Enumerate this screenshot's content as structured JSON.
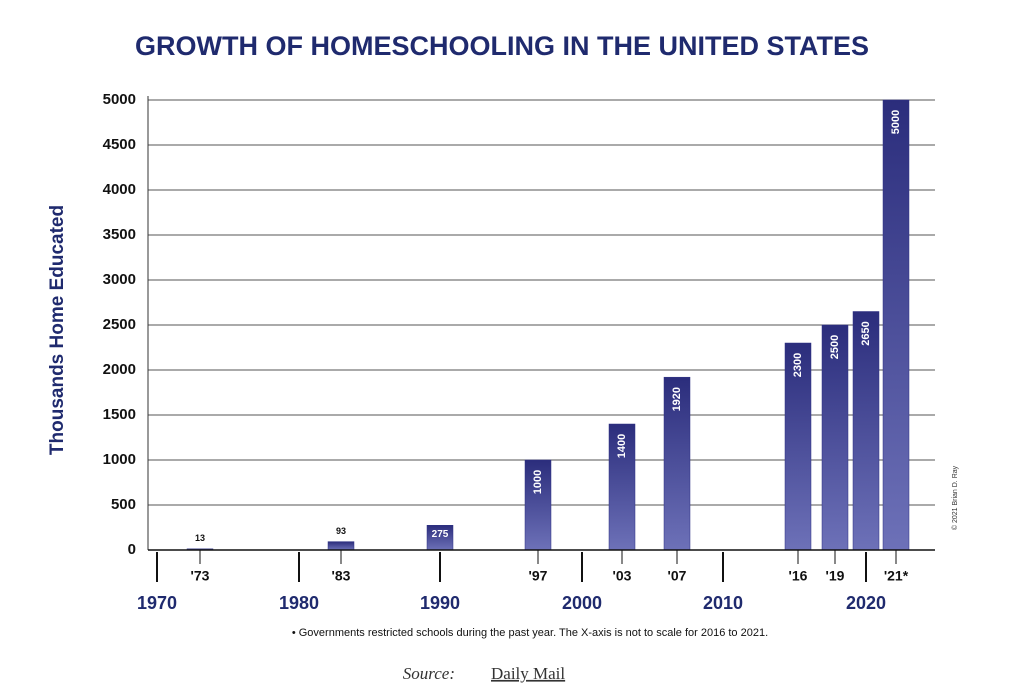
{
  "chart_data": {
    "type": "bar",
    "title": "GROWTH OF HOMESCHOOLING IN THE UNITED STATES",
    "y_label": "Thousands Home Educated",
    "categories": [
      "'73",
      "'83",
      null,
      "'97",
      "'03",
      "'07",
      "'16",
      "'19",
      null,
      "'21*"
    ],
    "values": [
      13,
      93,
      275,
      1000,
      1400,
      1920,
      2300,
      2500,
      2650,
      5000
    ],
    "decades": [
      1970,
      1980,
      1990,
      2000,
      2010,
      2020
    ],
    "color": "#2e3184",
    "ylim": [
      0,
      5000
    ],
    "yticks": [
      0,
      500,
      1000,
      1500,
      2000,
      2500,
      3000,
      3500,
      4000,
      4500,
      5000
    ],
    "grid": true,
    "footnote": "• Governments restricted schools during the past year. The X-axis is not to scale for 2016 to 2021.",
    "source_prefix": "Source:",
    "source_name": "Daily Mail",
    "copyright": "© 2021 Brian D. Ray"
  }
}
